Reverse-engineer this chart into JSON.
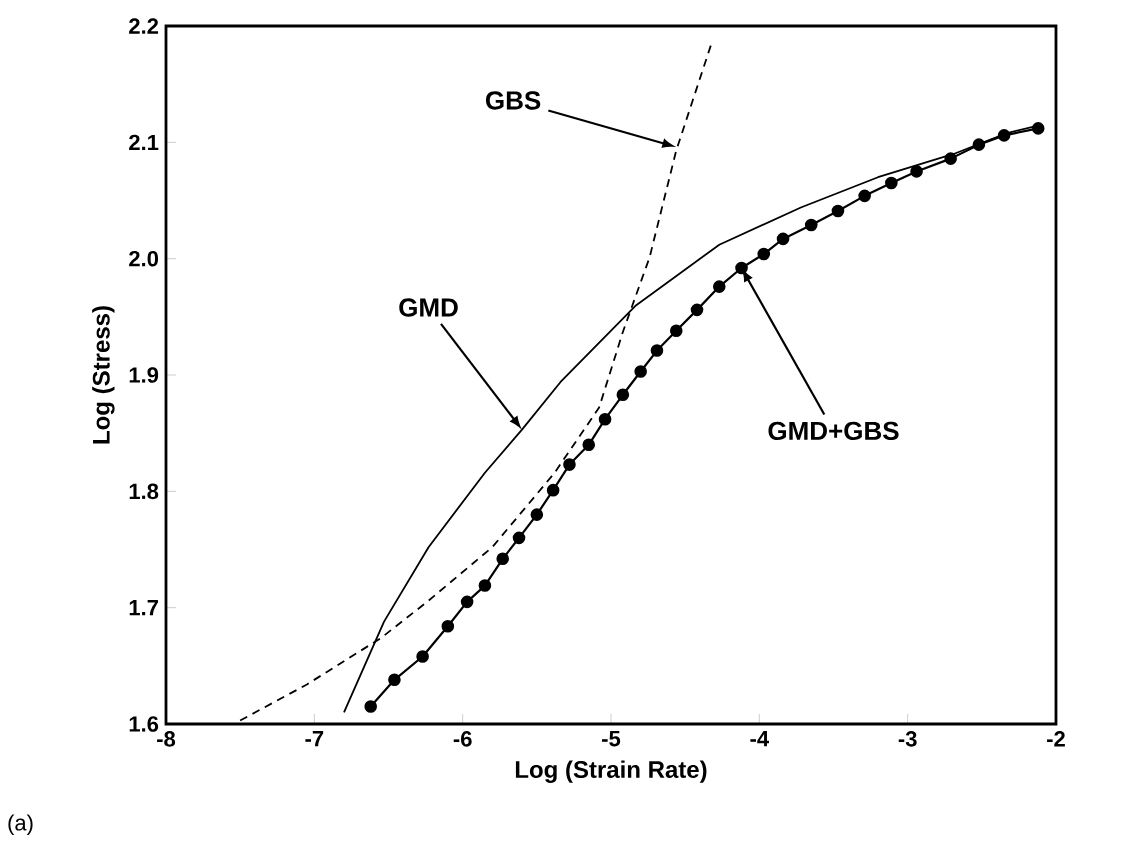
{
  "chart_data": {
    "type": "line",
    "xlabel": "Log (Strain Rate)",
    "ylabel": "Log (Stress)",
    "xlim": [
      -8,
      -2
    ],
    "ylim": [
      1.6,
      2.2
    ],
    "xticks": [
      -8,
      -7,
      -6,
      -5,
      -4,
      -3,
      -2
    ],
    "yticks": [
      {
        "value": 1.6,
        "label": "1.6"
      },
      {
        "value": 1.7,
        "label": "1.7"
      },
      {
        "value": 1.8,
        "label": "1.8"
      },
      {
        "value": 1.9,
        "label": "1.9"
      },
      {
        "value": 2.0,
        "label": "2.0"
      },
      {
        "value": 2.1,
        "label": "2.1"
      },
      {
        "value": 2.2,
        "label": "2.2"
      }
    ],
    "grid": false,
    "series": [
      {
        "color": "#000000",
        "line_style": "solid",
        "marker": "none",
        "x": [
          -6.8,
          -6.53,
          -6.23,
          -5.85,
          -5.6,
          -5.34,
          -4.83,
          -4.27,
          -3.72,
          -3.2,
          -2.69,
          -2.33,
          -2.1
        ],
        "values": [
          1.61,
          1.688,
          1.752,
          1.816,
          1.853,
          1.894,
          1.96,
          2.012,
          2.044,
          2.07,
          2.09,
          2.108,
          2.115
        ]
      },
      {
        "color": "#000000",
        "line_style": "dashed",
        "marker": "none",
        "x": [
          -7.5,
          -7.05,
          -6.55,
          -6.23,
          -5.8,
          -5.38,
          -5.08,
          -4.92,
          -4.74,
          -4.56,
          -4.32
        ],
        "values": [
          1.603,
          1.634,
          1.674,
          1.706,
          1.752,
          1.816,
          1.872,
          1.937,
          2.001,
          2.093,
          2.186
        ]
      },
      {
        "color": "#000000",
        "line_style": "solid",
        "marker": "circle",
        "x": [
          -6.62,
          -6.46,
          -6.27,
          -6.1,
          -5.97,
          -5.85,
          -5.73,
          -5.62,
          -5.5,
          -5.39,
          -5.28,
          -5.15,
          -5.04,
          -4.92,
          -4.8,
          -4.69,
          -4.56,
          -4.42,
          -4.27,
          -4.12,
          -3.97,
          -3.84,
          -3.65,
          -3.47,
          -3.29,
          -3.11,
          -2.94,
          -2.71,
          -2.52,
          -2.35,
          -2.12
        ],
        "values": [
          1.615,
          1.638,
          1.658,
          1.684,
          1.705,
          1.719,
          1.742,
          1.76,
          1.78,
          1.801,
          1.823,
          1.84,
          1.862,
          1.883,
          1.903,
          1.921,
          1.938,
          1.956,
          1.976,
          1.992,
          2.004,
          2.017,
          2.029,
          2.041,
          2.054,
          2.065,
          2.075,
          2.086,
          2.098,
          2.106,
          2.112
        ]
      }
    ],
    "annotations": [
      {
        "text": "GBS",
        "x": -4.56,
        "y": 2.096
      },
      {
        "text": "GMD",
        "x": -5.6,
        "y": 1.853
      },
      {
        "text": "GMD+GBS",
        "x": -4.12,
        "y": 1.992
      },
      "(a)"
    ]
  }
}
